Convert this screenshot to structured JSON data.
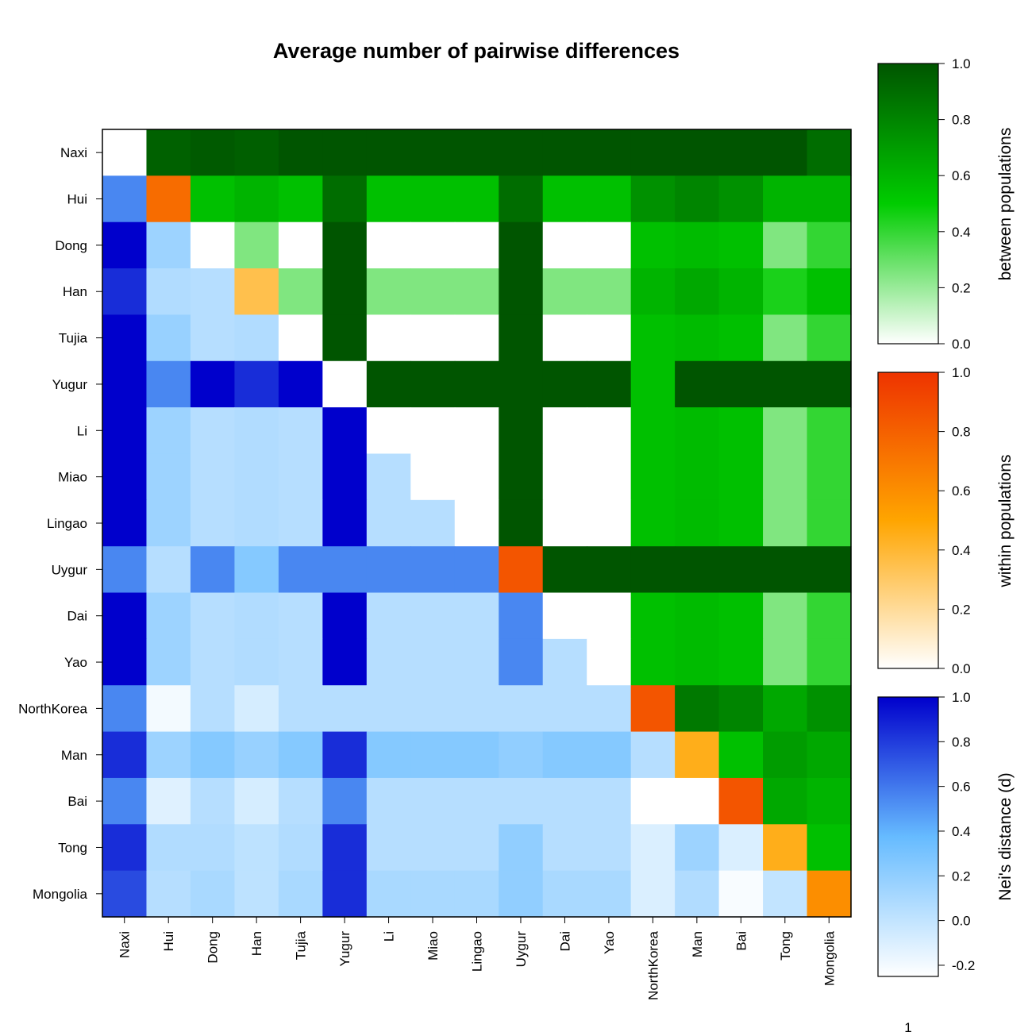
{
  "chart_data": {
    "type": "heatmap",
    "title": "Average number of pairwise differences",
    "populations": [
      "Naxi",
      "Hui",
      "Dong",
      "Han",
      "Tujia",
      "Yugur",
      "Li",
      "Miao",
      "Lingao",
      "Uygur",
      "Dai",
      "Yao",
      "NorthKorea",
      "Man",
      "Bai",
      "Tong",
      "Mongolia"
    ],
    "layout_note": "rows listed top to bottom, columns left to right; diagonal = within populations, upper triangle = between populations, lower triangle = Nei's distance (d)",
    "matrix": [
      [
        0.0,
        0.95,
        0.98,
        0.96,
        1.0,
        1.0,
        1.0,
        1.0,
        1.0,
        1.0,
        1.0,
        1.0,
        1.0,
        1.0,
        1.0,
        1.0,
        0.9
      ],
      [
        0.55,
        0.75,
        0.55,
        0.6,
        0.55,
        0.9,
        0.55,
        0.55,
        0.55,
        0.9,
        0.55,
        0.55,
        0.75,
        0.8,
        0.75,
        0.6,
        0.6
      ],
      [
        1.0,
        0.15,
        0.0,
        0.25,
        0.0,
        1.0,
        0.0,
        0.0,
        0.0,
        1.0,
        0.0,
        0.0,
        0.55,
        0.57,
        0.55,
        0.25,
        0.4
      ],
      [
        0.85,
        0.07,
        0.05,
        0.35,
        0.25,
        1.0,
        0.25,
        0.25,
        0.25,
        1.0,
        0.25,
        0.25,
        0.6,
        0.65,
        0.6,
        0.45,
        0.55
      ],
      [
        1.0,
        0.17,
        0.05,
        0.07,
        0.0,
        1.0,
        0.0,
        0.0,
        0.0,
        1.0,
        0.0,
        0.0,
        0.55,
        0.57,
        0.55,
        0.25,
        0.4
      ],
      [
        1.0,
        0.55,
        1.0,
        0.85,
        1.0,
        0.0,
        1.0,
        1.0,
        1.0,
        1.0,
        1.0,
        1.0,
        0.55,
        1.0,
        1.0,
        1.0,
        1.0
      ],
      [
        1.0,
        0.15,
        0.05,
        0.07,
        0.05,
        1.0,
        0.0,
        0.0,
        0.0,
        1.0,
        0.0,
        0.0,
        0.55,
        0.57,
        0.55,
        0.25,
        0.4
      ],
      [
        1.0,
        0.15,
        0.05,
        0.07,
        0.05,
        1.0,
        0.05,
        0.0,
        0.0,
        1.0,
        0.0,
        0.0,
        0.55,
        0.57,
        0.55,
        0.25,
        0.4
      ],
      [
        1.0,
        0.15,
        0.05,
        0.07,
        0.05,
        1.0,
        0.05,
        0.05,
        0.0,
        1.0,
        0.0,
        0.0,
        0.55,
        0.57,
        0.55,
        0.25,
        0.4
      ],
      [
        0.55,
        0.05,
        0.55,
        0.25,
        0.55,
        0.55,
        0.55,
        0.55,
        0.55,
        0.85,
        1.0,
        1.0,
        1.0,
        1.0,
        1.0,
        1.0,
        1.0
      ],
      [
        1.0,
        0.15,
        0.05,
        0.07,
        0.05,
        1.0,
        0.05,
        0.05,
        0.05,
        0.55,
        0.0,
        0.0,
        0.55,
        0.57,
        0.55,
        0.25,
        0.4
      ],
      [
        1.0,
        0.15,
        0.05,
        0.07,
        0.05,
        1.0,
        0.05,
        0.05,
        0.05,
        0.55,
        0.05,
        0.0,
        0.55,
        0.57,
        0.55,
        0.25,
        0.4
      ],
      [
        0.55,
        -0.2,
        0.05,
        -0.08,
        0.05,
        0.05,
        0.05,
        0.05,
        0.05,
        0.05,
        0.05,
        0.05,
        0.85,
        0.85,
        0.8,
        0.65,
        0.75
      ],
      [
        0.85,
        0.15,
        0.25,
        0.17,
        0.25,
        0.85,
        0.25,
        0.25,
        0.25,
        0.2,
        0.25,
        0.25,
        0.05,
        0.45,
        0.55,
        0.7,
        0.65
      ],
      [
        0.55,
        -0.12,
        0.05,
        -0.08,
        0.05,
        0.55,
        0.05,
        0.05,
        0.05,
        0.05,
        0.05,
        0.05,
        -0.25,
        -0.25,
        0.85,
        0.65,
        0.6
      ],
      [
        0.85,
        0.07,
        0.07,
        0.02,
        0.07,
        0.85,
        0.05,
        0.05,
        0.05,
        0.2,
        0.05,
        0.05,
        -0.1,
        0.15,
        -0.1,
        0.45,
        0.55
      ],
      [
        0.75,
        0.05,
        0.1,
        0.02,
        0.1,
        0.85,
        0.1,
        0.1,
        0.1,
        0.2,
        0.1,
        0.1,
        -0.1,
        0.07,
        -0.22,
        0.0,
        0.6
      ]
    ],
    "colorbars": [
      {
        "label": "between populations",
        "ticks": [
          "1.0",
          "0.8",
          "0.6",
          "0.4",
          "0.2",
          "0.0"
        ],
        "colors": [
          "#ffffff",
          "#00cc00",
          "#005500"
        ]
      },
      {
        "label": "within populations",
        "ticks": [
          "1.0",
          "0.8",
          "0.6",
          "0.4",
          "0.2",
          "0.0"
        ],
        "colors": [
          "#ffffff",
          "#ffa500",
          "#ee3300"
        ]
      },
      {
        "label": "Nei's distance (d)",
        "ticks": [
          "1.0",
          "0.8",
          "0.6",
          "0.4",
          "0.2",
          "0.0",
          "-0.2"
        ],
        "colors": [
          "#ffffff",
          "#66bbff",
          "#0000cc"
        ]
      }
    ]
  },
  "footer_mark": "1"
}
